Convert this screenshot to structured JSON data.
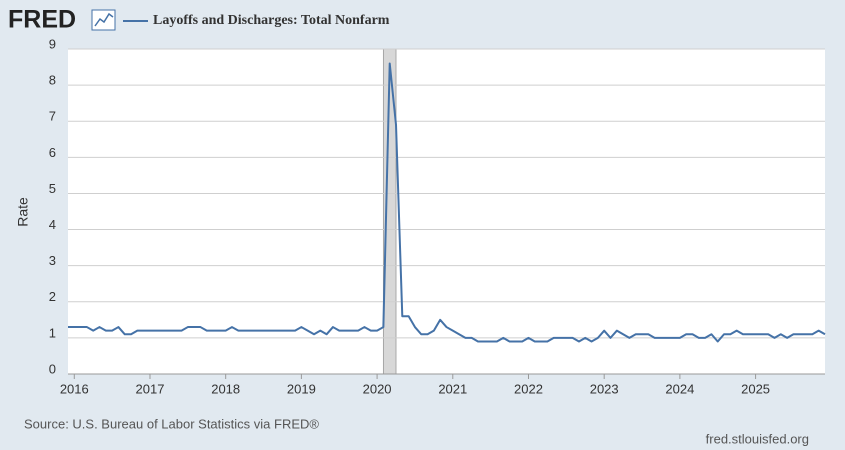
{
  "header": {
    "logo": "FRED"
  },
  "chart_data": {
    "type": "line",
    "title": "Layoffs and Discharges: Total Nonfarm",
    "y_label": "Rate",
    "source": "Source: U.S. Bureau of Labor Statistics via FRED®",
    "url": "fred.stlouisfed.org",
    "recession": [
      2020.083,
      2020.25
    ],
    "grid": true,
    "xlim": [
      2015.917,
      2025.917
    ],
    "xticks": [
      2016,
      2017,
      2018,
      2019,
      2020,
      2021,
      2022,
      2023,
      2024,
      2025
    ],
    "ylim": [
      0,
      9
    ],
    "yticks": [
      0,
      1,
      2,
      3,
      4,
      5,
      6,
      7,
      8,
      9
    ],
    "x": [
      2015.917,
      2016,
      2016.083,
      2016.167,
      2016.25,
      2016.333,
      2016.417,
      2016.5,
      2016.583,
      2016.667,
      2016.75,
      2016.833,
      2016.917,
      2017,
      2017.083,
      2017.167,
      2017.25,
      2017.333,
      2017.417,
      2017.5,
      2017.583,
      2017.667,
      2017.75,
      2017.833,
      2017.917,
      2018,
      2018.083,
      2018.167,
      2018.25,
      2018.333,
      2018.417,
      2018.5,
      2018.583,
      2018.667,
      2018.75,
      2018.833,
      2018.917,
      2019,
      2019.083,
      2019.167,
      2019.25,
      2019.333,
      2019.417,
      2019.5,
      2019.583,
      2019.667,
      2019.75,
      2019.833,
      2019.917,
      2020,
      2020.083,
      2020.167,
      2020.25,
      2020.333,
      2020.417,
      2020.5,
      2020.583,
      2020.667,
      2020.75,
      2020.833,
      2020.917,
      2021,
      2021.083,
      2021.167,
      2021.25,
      2021.333,
      2021.417,
      2021.5,
      2021.583,
      2021.667,
      2021.75,
      2021.833,
      2021.917,
      2022,
      2022.083,
      2022.167,
      2022.25,
      2022.333,
      2022.417,
      2022.5,
      2022.583,
      2022.667,
      2022.75,
      2022.833,
      2022.917,
      2023,
      2023.083,
      2023.167,
      2023.25,
      2023.333,
      2023.417,
      2023.5,
      2023.583,
      2023.667,
      2023.75,
      2023.833,
      2023.917,
      2024,
      2024.083,
      2024.167,
      2024.25,
      2024.333,
      2024.417,
      2024.5,
      2024.583,
      2024.667,
      2024.75,
      2024.833,
      2024.917,
      2025,
      2025.083,
      2025.167,
      2025.25,
      2025.333,
      2025.417,
      2025.5,
      2025.583,
      2025.667,
      2025.75,
      2025.833,
      2025.917
    ],
    "series": [
      {
        "name": "Layoffs and Discharges: Total Nonfarm",
        "color": "#4572a7",
        "values": [
          1.3,
          1.3,
          1.3,
          1.3,
          1.2,
          1.3,
          1.2,
          1.2,
          1.3,
          1.1,
          1.1,
          1.2,
          1.2,
          1.2,
          1.2,
          1.2,
          1.2,
          1.2,
          1.2,
          1.3,
          1.3,
          1.3,
          1.2,
          1.2,
          1.2,
          1.2,
          1.3,
          1.2,
          1.2,
          1.2,
          1.2,
          1.2,
          1.2,
          1.2,
          1.2,
          1.2,
          1.2,
          1.3,
          1.2,
          1.1,
          1.2,
          1.1,
          1.3,
          1.2,
          1.2,
          1.2,
          1.2,
          1.3,
          1.2,
          1.2,
          1.3,
          8.6,
          6.9,
          1.6,
          1.6,
          1.3,
          1.1,
          1.1,
          1.2,
          1.5,
          1.3,
          1.2,
          1.1,
          1.0,
          1.0,
          0.9,
          0.9,
          0.9,
          0.9,
          1.0,
          0.9,
          0.9,
          0.9,
          1.0,
          0.9,
          0.9,
          0.9,
          1.0,
          1.0,
          1.0,
          1.0,
          0.9,
          1.0,
          0.9,
          1.0,
          1.2,
          1.0,
          1.2,
          1.1,
          1.0,
          1.1,
          1.1,
          1.1,
          1.0,
          1.0,
          1.0,
          1.0,
          1.0,
          1.1,
          1.1,
          1.0,
          1.0,
          1.1,
          0.9,
          1.1,
          1.1,
          1.2,
          1.1,
          1.1,
          1.1,
          1.1,
          1.1,
          1.0,
          1.1,
          1.0,
          1.1,
          1.1,
          1.1,
          1.1,
          1.2,
          1.1
        ]
      }
    ]
  }
}
